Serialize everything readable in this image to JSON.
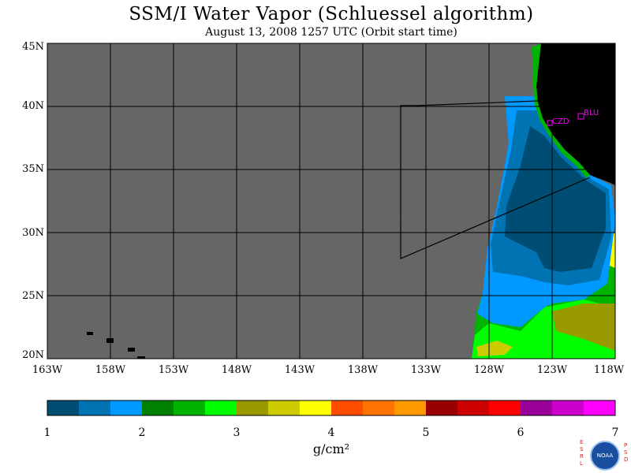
{
  "title": "SSM/I Water Vapor (Schluessel algorithm)",
  "subtitle": "August 13, 2008  1257 UTC  (Orbit start time)",
  "map": {
    "lon_range": [
      -163,
      -118
    ],
    "lat_range": [
      20,
      45
    ],
    "lat_labels": [
      "45N",
      "40N",
      "35N",
      "30N",
      "25N",
      "20N"
    ],
    "lon_labels": [
      "163W",
      "158W",
      "153W",
      "148W",
      "143W",
      "138W",
      "133W",
      "128W",
      "123W",
      "118W"
    ],
    "background_color": "#666666",
    "land_color": "#000000",
    "stations": [
      {
        "label": "CZD",
        "lon": -123.0,
        "lat": 38.6
      },
      {
        "label": "BLU",
        "lon": -120.8,
        "lat": 39.3
      }
    ],
    "station_color": "#ff00ff"
  },
  "colorbar": {
    "unit": "g/cm²",
    "labels": [
      "1",
      "2",
      "3",
      "4",
      "5",
      "6",
      "7"
    ],
    "colors": [
      "#004d73",
      "#0073b3",
      "#0099ff",
      "#008000",
      "#00b300",
      "#00ff00",
      "#999900",
      "#cccc00",
      "#ffff00",
      "#ff4d00",
      "#ff7300",
      "#ff9900",
      "#990000",
      "#cc0000",
      "#ff0000",
      "#990099",
      "#cc00cc",
      "#ff00ff"
    ]
  },
  "logo": {
    "left_text": "ESRL",
    "right_text": "PSD",
    "badge_text": "NOAA"
  }
}
